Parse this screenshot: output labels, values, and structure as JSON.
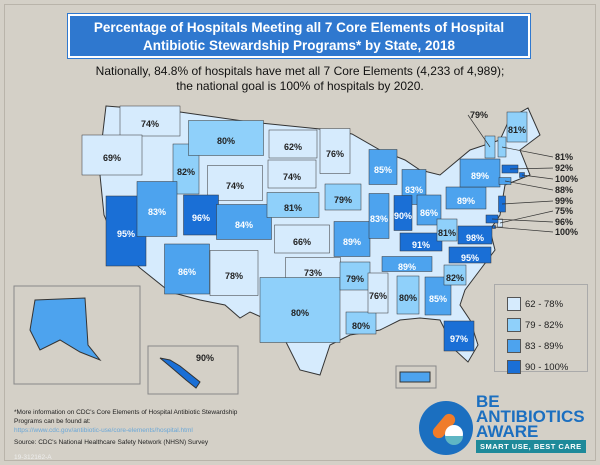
{
  "title": "Percentage of Hospitals Meeting all 7 Core Elements of Hospital Antibiotic Stewardship Programs* by State, 2018",
  "subtitle_line1": "Nationally, 84.8% of hospitals have met all 7 Core Elements (4,233 of 4,989);",
  "subtitle_line2": "the national goal is 100% of hospitals by 2020.",
  "legend": [
    {
      "label": "62 - 78%",
      "color": "#d6ebfd"
    },
    {
      "label": "79 - 82%",
      "color": "#8fd0fa"
    },
    {
      "label": "83 - 89%",
      "color": "#4da3ee"
    },
    {
      "label": "90 - 100%",
      "color": "#1a6fd6"
    }
  ],
  "states": [
    {
      "state": "WA",
      "value": "74%"
    },
    {
      "state": "OR",
      "value": "69%"
    },
    {
      "state": "CA",
      "value": "95%"
    },
    {
      "state": "ID",
      "value": "82%"
    },
    {
      "state": "NV",
      "value": "83%"
    },
    {
      "state": "MT",
      "value": "80%"
    },
    {
      "state": "WY",
      "value": "74%"
    },
    {
      "state": "UT",
      "value": "96%"
    },
    {
      "state": "AZ",
      "value": "86%"
    },
    {
      "state": "CO",
      "value": "84%"
    },
    {
      "state": "NM",
      "value": "78%"
    },
    {
      "state": "ND",
      "value": "62%"
    },
    {
      "state": "SD",
      "value": "74%"
    },
    {
      "state": "NE",
      "value": "81%"
    },
    {
      "state": "KS",
      "value": "66%"
    },
    {
      "state": "OK",
      "value": "73%"
    },
    {
      "state": "TX",
      "value": "80%"
    },
    {
      "state": "MN",
      "value": "76%"
    },
    {
      "state": "IA",
      "value": "79%"
    },
    {
      "state": "MO",
      "value": "89%"
    },
    {
      "state": "AR",
      "value": "79%"
    },
    {
      "state": "LA",
      "value": "80%"
    },
    {
      "state": "WI",
      "value": "85%"
    },
    {
      "state": "IL",
      "value": "83%"
    },
    {
      "state": "MS",
      "value": "76%"
    },
    {
      "state": "MI",
      "value": "83%"
    },
    {
      "state": "IN",
      "value": "90%"
    },
    {
      "state": "OH",
      "value": "86%"
    },
    {
      "state": "KY",
      "value": "91%"
    },
    {
      "state": "TN",
      "value": "89%"
    },
    {
      "state": "AL",
      "value": "80%"
    },
    {
      "state": "GA",
      "value": "85%"
    },
    {
      "state": "FL",
      "value": "97%"
    },
    {
      "state": "SC",
      "value": "82%"
    },
    {
      "state": "NC",
      "value": "95%"
    },
    {
      "state": "VA",
      "value": "98%"
    },
    {
      "state": "WV",
      "value": "81%"
    },
    {
      "state": "PA",
      "value": "89%"
    },
    {
      "state": "NY",
      "value": "89%"
    },
    {
      "state": "VT",
      "value": "79%"
    },
    {
      "state": "ME",
      "value": "81%"
    },
    {
      "state": "NH",
      "value": "81%"
    },
    {
      "state": "MA",
      "value": "92%"
    },
    {
      "state": "RI",
      "value": "100%"
    },
    {
      "state": "CT",
      "value": "88%"
    },
    {
      "state": "NJ",
      "value": "99%"
    },
    {
      "state": "DE",
      "value": "75%"
    },
    {
      "state": "MD",
      "value": "96%"
    },
    {
      "state": "DC",
      "value": "100%"
    },
    {
      "state": "AK",
      "value": "83%"
    },
    {
      "state": "HI",
      "value": "90%"
    },
    {
      "state": "PR",
      "value": "83%"
    }
  ],
  "footnote": "*More information on CDC's Core Elements of Hospital Antibiotic Stewardship Programs can be found at:",
  "url": "https://www.cdc.gov/antibiotic-use/core-elements/hospital.html",
  "source": "Source: CDC's National Healthcare Safety Network (NHSN) Survey",
  "code": "19-312162-A",
  "logo": {
    "line1": "BE",
    "line2": "ANTIBIOTICS",
    "line3": "AWARE",
    "tagline": "SMART USE, BEST CARE"
  }
}
